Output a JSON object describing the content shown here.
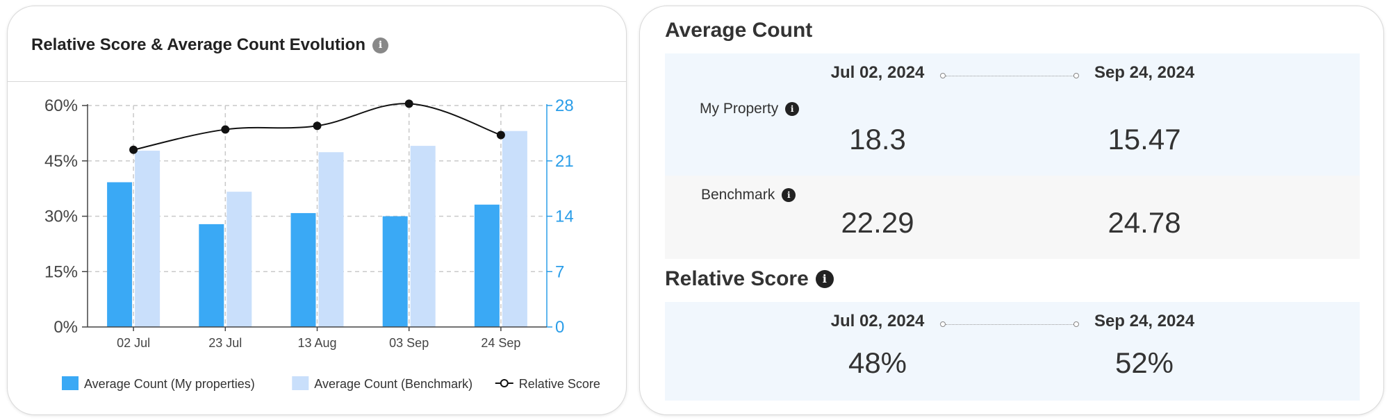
{
  "left_card": {
    "title": "Relative Score & Average Count Evolution",
    "info_icon": "info-icon"
  },
  "chart_data": {
    "type": "bar",
    "categories": [
      "02 Jul",
      "23 Jul",
      "13 Aug",
      "03 Sep",
      "24 Sep"
    ],
    "series": [
      {
        "name": "Average Count (My properties)",
        "type": "bar",
        "axis": "right",
        "color": "#3aa9f5",
        "values": [
          18.3,
          13.0,
          14.4,
          14.0,
          15.47
        ]
      },
      {
        "name": "Average Count (Benchmark)",
        "type": "bar",
        "axis": "right",
        "color": "#c9dffb",
        "values": [
          22.29,
          17.1,
          22.1,
          22.9,
          24.78
        ]
      },
      {
        "name": "Relative Score",
        "type": "line",
        "axis": "left",
        "color": "#111111",
        "values": [
          48,
          53.5,
          54.5,
          60.5,
          52
        ]
      }
    ],
    "left_axis": {
      "ticks": [
        "0%",
        "15%",
        "30%",
        "45%",
        "60%"
      ],
      "min": 0,
      "max": 60
    },
    "right_axis": {
      "ticks": [
        "0",
        "7",
        "14",
        "21",
        "28"
      ],
      "min": 0,
      "max": 28,
      "color": "#2a9de8"
    },
    "grid": true,
    "legend_position": "bottom"
  },
  "average_count": {
    "title": "Average Count",
    "start_date": "Jul 02, 2024",
    "end_date": "Sep 24, 2024",
    "my_property_label": "My Property",
    "my_property_start": "18.3",
    "my_property_end": "15.47",
    "benchmark_label": "Benchmark",
    "benchmark_start": "22.29",
    "benchmark_end": "24.78"
  },
  "relative_score": {
    "title": "Relative Score",
    "start_date": "Jul 02, 2024",
    "end_date": "Sep 24, 2024",
    "start_value": "48%",
    "end_value": "52%"
  },
  "info_glyph": "i"
}
